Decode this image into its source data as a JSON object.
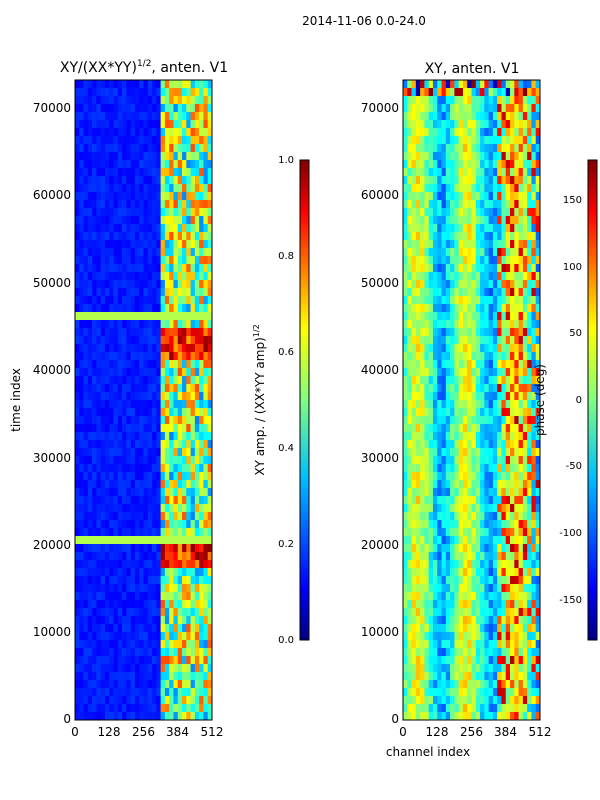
{
  "figure": {
    "suptitle": "2014-11-06 0.0-24.0"
  },
  "colors": {
    "background": "#ffffff",
    "axis": "#000000",
    "jet": [
      "#00007f",
      "#0000ff",
      "#007fff",
      "#00ffff",
      "#7fff7f",
      "#ffff00",
      "#ff7f00",
      "#ff0000",
      "#7f0000"
    ]
  },
  "chart_data": [
    {
      "type": "heatmap",
      "title_prefix": "XY/(XX*YY)",
      "title_exp": "1/2",
      "title_suffix": ", anten. V1",
      "xlabel": "",
      "ylabel": "time index",
      "xlim": [
        0,
        512
      ],
      "ylim": [
        0,
        73000
      ],
      "xticks": [
        0,
        128,
        256,
        384,
        512
      ],
      "yticks": [
        0,
        10000,
        20000,
        30000,
        40000,
        50000,
        60000,
        70000
      ],
      "colorbar": {
        "label_main": "XY amp. / (XX*YY amp)",
        "label_exp": "1/2",
        "range": [
          0.0,
          1.0
        ],
        "ticks": [
          "0.0",
          "0.2",
          "0.4",
          "0.6",
          "0.8",
          "1.0"
        ]
      }
    },
    {
      "type": "heatmap",
      "title": "XY, anten. V1",
      "xlabel": "channel index",
      "ylabel": "",
      "xlim": [
        0,
        512
      ],
      "ylim": [
        0,
        73000
      ],
      "xticks": [
        0,
        128,
        256,
        384,
        512
      ],
      "yticks": [
        0,
        10000,
        20000,
        30000,
        40000,
        50000,
        60000,
        70000
      ],
      "colorbar": {
        "label": "phase (deg)",
        "range": [
          -180,
          180
        ],
        "ticks": [
          "-150",
          "-100",
          "-50",
          "0",
          "50",
          "100",
          "150"
        ]
      }
    }
  ]
}
